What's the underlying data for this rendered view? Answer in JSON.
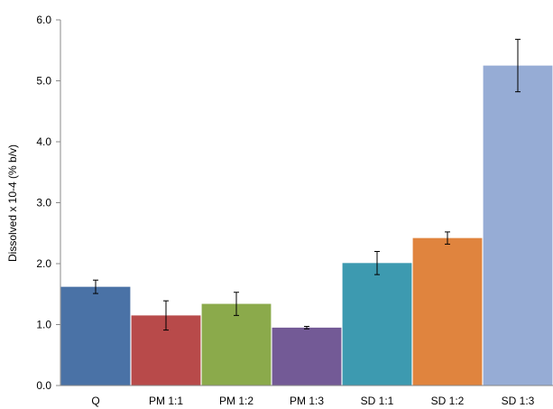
{
  "chart_data": {
    "type": "bar",
    "categories": [
      "Q",
      "PM 1:1",
      "PM 1:2",
      "PM 1:3",
      "SD 1:1",
      "SD 1:2",
      "SD 1:3"
    ],
    "values": [
      1.62,
      1.15,
      1.34,
      0.95,
      2.01,
      2.42,
      5.25
    ],
    "errors": [
      0.11,
      0.24,
      0.19,
      0.02,
      0.19,
      0.1,
      0.43
    ],
    "colors": [
      "#4A72A6",
      "#B84A4A",
      "#8BAA4B",
      "#735A96",
      "#3D9AB0",
      "#E0843E",
      "#96ACD5"
    ],
    "xlabel": "",
    "ylabel": "Dissolved x 10-4 (% b/v)",
    "ylim": [
      0,
      6
    ],
    "yticks": [
      "0.0",
      "1.0",
      "2.0",
      "3.0",
      "4.0",
      "5.0",
      "6.0"
    ],
    "grid": false,
    "legend": "none"
  }
}
